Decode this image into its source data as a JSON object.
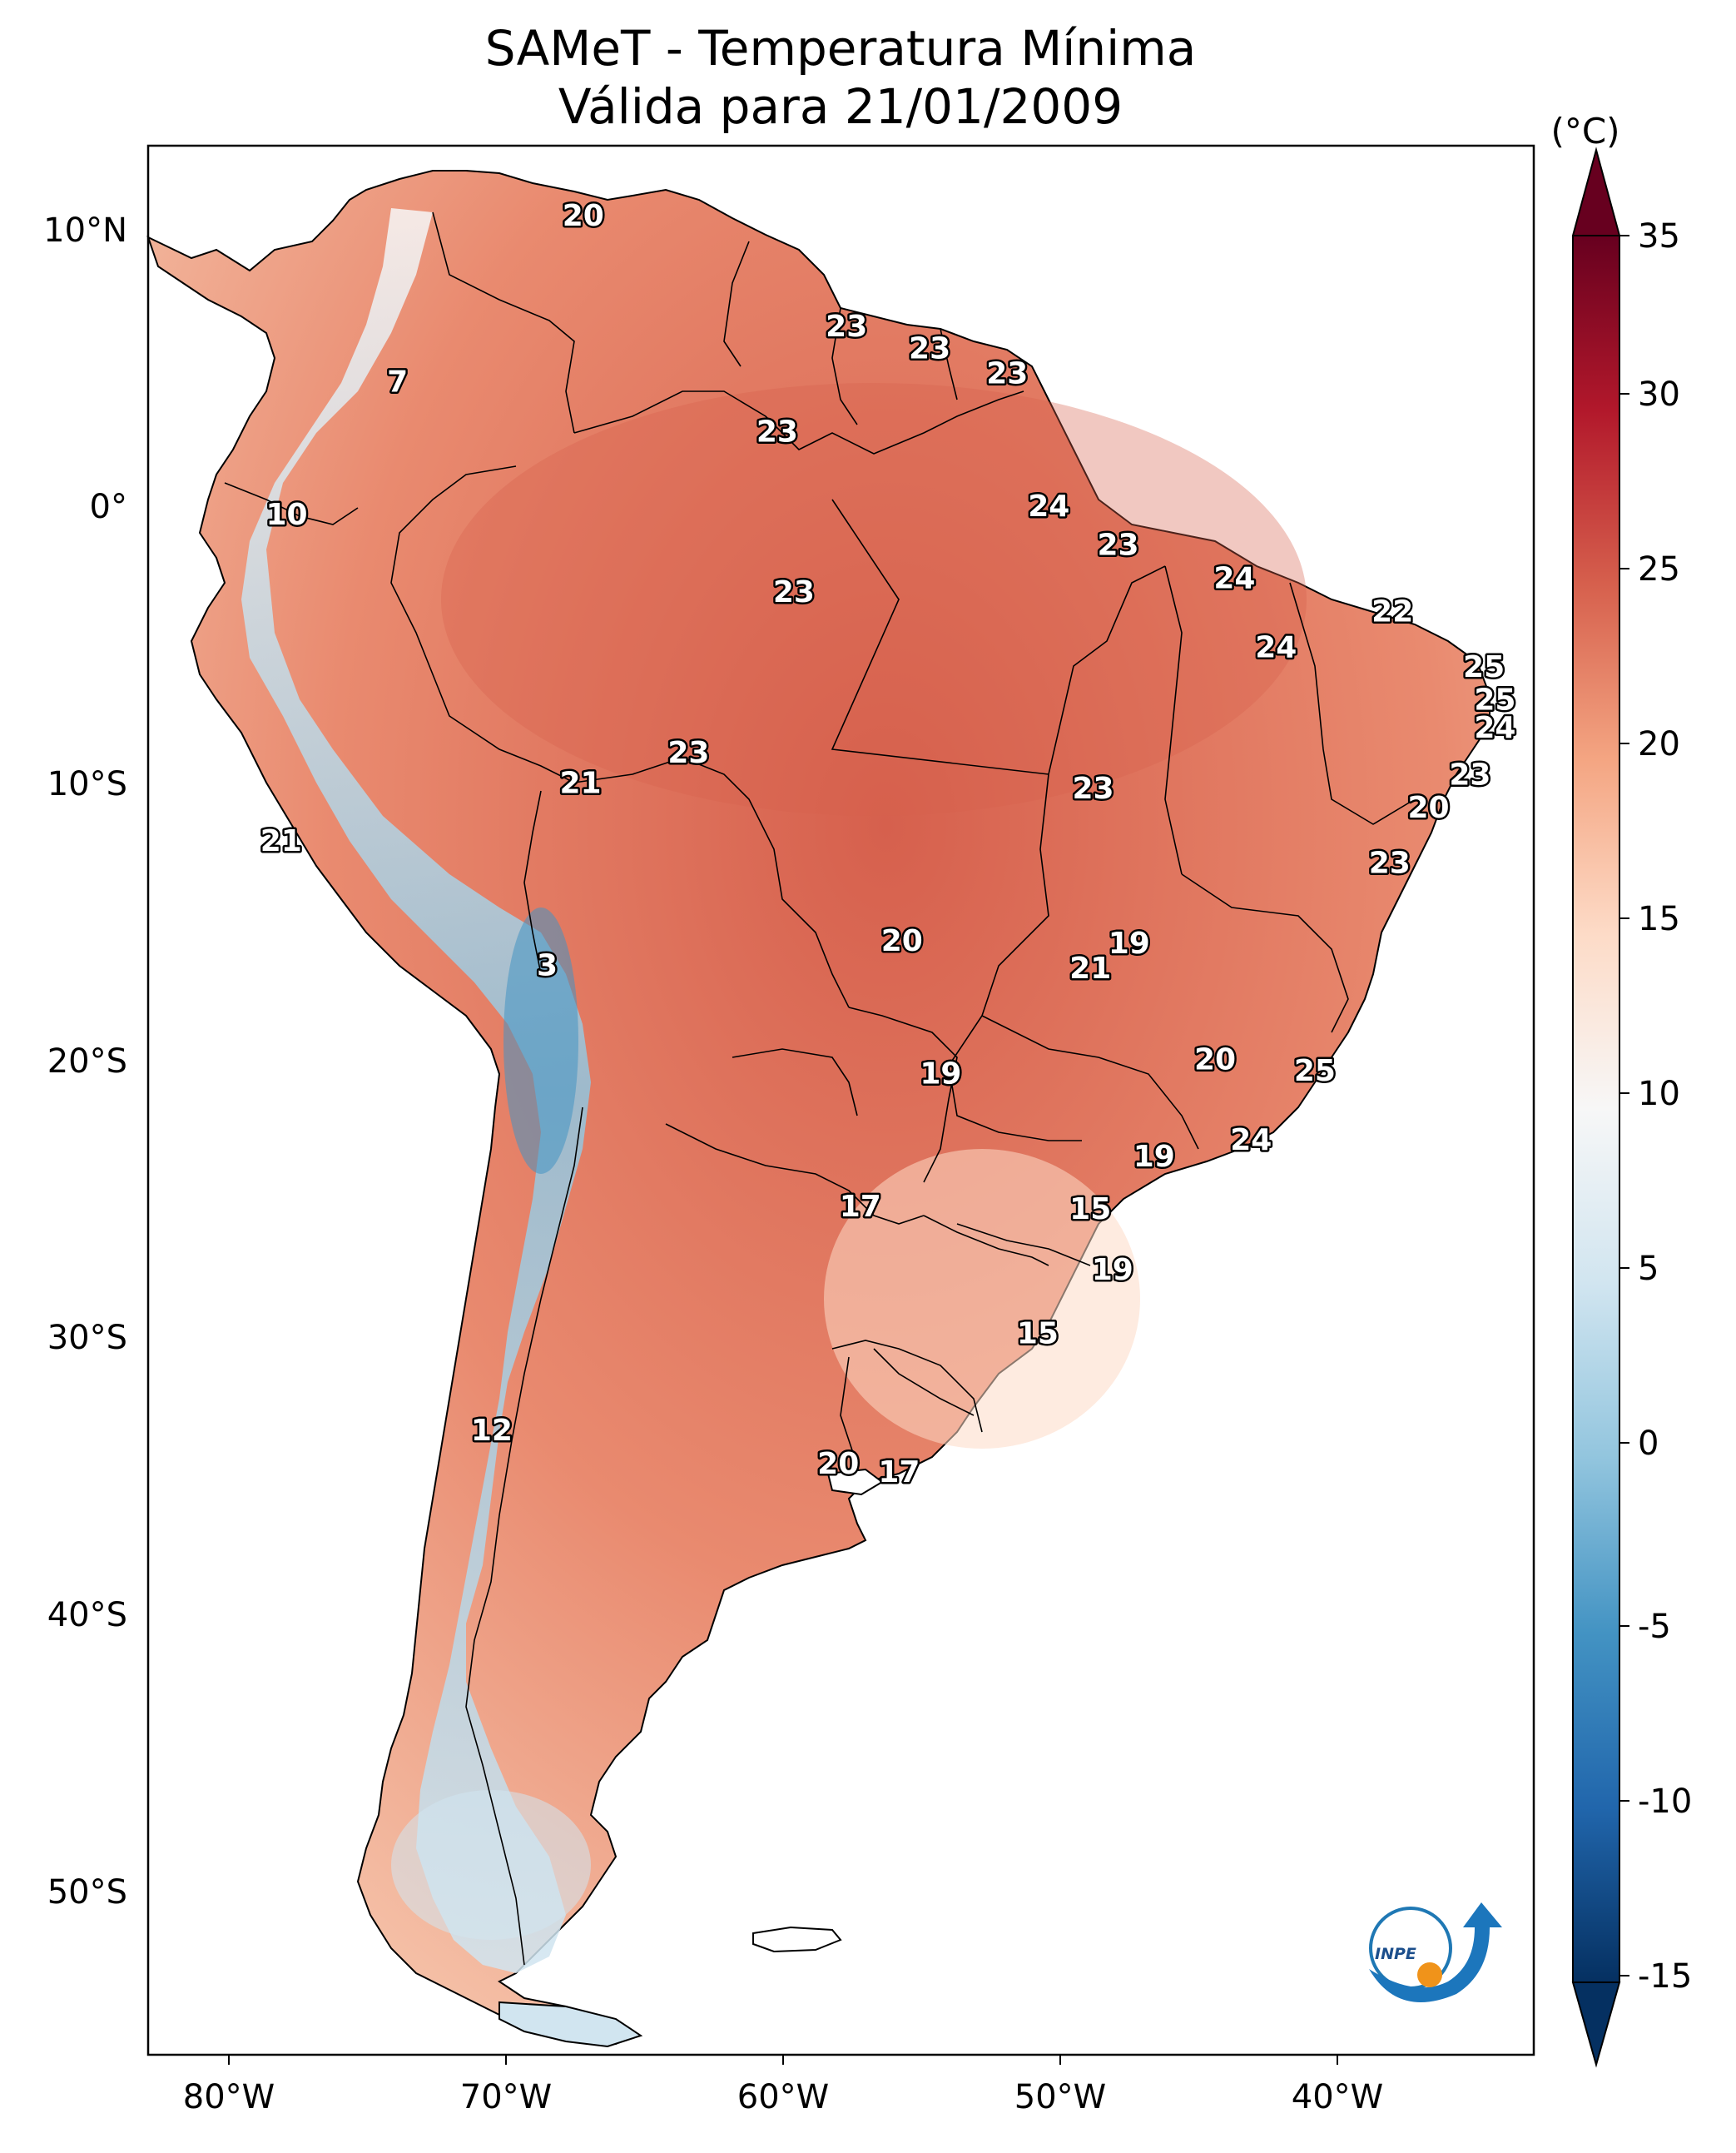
{
  "title": {
    "line1": "SAMeT - Temperatura Mínima",
    "line2": "Válida para 21/01/2009"
  },
  "map": {
    "longitude_ticks": [
      "80°W",
      "70°W",
      "60°W",
      "50°W",
      "40°W"
    ],
    "latitude_ticks": [
      "10°N",
      "0°",
      "10°S",
      "20°S",
      "30°S",
      "40°S",
      "50°S"
    ],
    "lon_range": [
      -83,
      -33
    ],
    "lat_range": [
      -56,
      13
    ]
  },
  "colorbar": {
    "unit": "(°C)",
    "ticks": [
      "35",
      "30",
      "25",
      "20",
      "15",
      "10",
      "5",
      "0",
      "-5",
      "-10",
      "-15"
    ],
    "min": -17,
    "max": 37,
    "colors": [
      "#053061",
      "#2166ac",
      "#4393c3",
      "#92c5de",
      "#d1e5f0",
      "#f7f7f7",
      "#fddbc7",
      "#f4a582",
      "#d6604d",
      "#b2182b",
      "#67001f"
    ]
  },
  "temperature_labels": [
    {
      "text": "20",
      "lon": -67.3,
      "lat": 10.5
    },
    {
      "text": "7",
      "lon": -74.0,
      "lat": 4.5
    },
    {
      "text": "23",
      "lon": -57.8,
      "lat": 6.5
    },
    {
      "text": "23",
      "lon": -54.8,
      "lat": 5.7
    },
    {
      "text": "23",
      "lon": -52.0,
      "lat": 4.8
    },
    {
      "text": "23",
      "lon": -60.3,
      "lat": 2.7
    },
    {
      "text": "10",
      "lon": -78.0,
      "lat": -0.3
    },
    {
      "text": "24",
      "lon": -50.5,
      "lat": 0.0
    },
    {
      "text": "23",
      "lon": -48.0,
      "lat": -1.4
    },
    {
      "text": "23",
      "lon": -59.7,
      "lat": -3.1
    },
    {
      "text": "24",
      "lon": -43.8,
      "lat": -2.6
    },
    {
      "text": "22",
      "lon": -38.1,
      "lat": -3.8
    },
    {
      "text": "24",
      "lon": -42.3,
      "lat": -5.1
    },
    {
      "text": "25",
      "lon": -34.8,
      "lat": -5.8
    },
    {
      "text": "25",
      "lon": -34.4,
      "lat": -7.0
    },
    {
      "text": "24",
      "lon": -34.4,
      "lat": -8.0
    },
    {
      "text": "23",
      "lon": -63.5,
      "lat": -8.9
    },
    {
      "text": "21",
      "lon": -67.4,
      "lat": -10.0
    },
    {
      "text": "23",
      "lon": -48.9,
      "lat": -10.2
    },
    {
      "text": "23",
      "lon": -35.3,
      "lat": -9.7
    },
    {
      "text": "20",
      "lon": -36.8,
      "lat": -10.9
    },
    {
      "text": "21",
      "lon": -78.2,
      "lat": -12.1
    },
    {
      "text": "23",
      "lon": -38.2,
      "lat": -12.9
    },
    {
      "text": "20",
      "lon": -55.8,
      "lat": -15.7
    },
    {
      "text": "19",
      "lon": -47.6,
      "lat": -15.8
    },
    {
      "text": "21",
      "lon": -49.0,
      "lat": -16.7
    },
    {
      "text": "3",
      "lon": -68.6,
      "lat": -16.6
    },
    {
      "text": "20",
      "lon": -44.5,
      "lat": -20.0
    },
    {
      "text": "25",
      "lon": -40.9,
      "lat": -20.4
    },
    {
      "text": "19",
      "lon": -54.4,
      "lat": -20.5
    },
    {
      "text": "24",
      "lon": -43.2,
      "lat": -22.9
    },
    {
      "text": "19",
      "lon": -46.7,
      "lat": -23.5
    },
    {
      "text": "17",
      "lon": -57.3,
      "lat": -25.3
    },
    {
      "text": "15",
      "lon": -49.0,
      "lat": -25.4
    },
    {
      "text": "19",
      "lon": -48.2,
      "lat": -27.6
    },
    {
      "text": "15",
      "lon": -50.9,
      "lat": -29.9
    },
    {
      "text": "12",
      "lon": -70.6,
      "lat": -33.4
    },
    {
      "text": "20",
      "lon": -58.1,
      "lat": -34.6
    },
    {
      "text": "17",
      "lon": -55.9,
      "lat": -34.9
    }
  ],
  "logo": {
    "text": "INPE"
  }
}
